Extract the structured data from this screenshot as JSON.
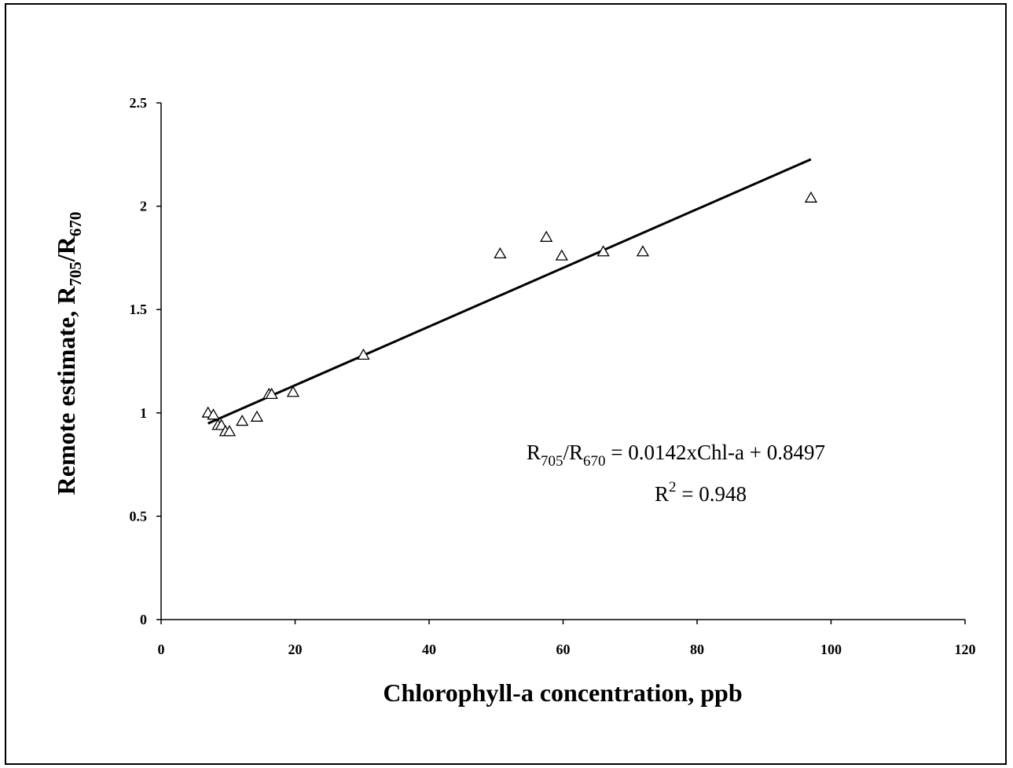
{
  "chart_data": {
    "type": "scatter",
    "xlabel": "Chlorophyll-a concentration, ppb",
    "ylabel": {
      "base": "Remote estimate, R",
      "sub1": "705",
      "mid": "/R",
      "sub2": "670"
    },
    "xlim": [
      0,
      120
    ],
    "ylim": [
      0,
      2.5
    ],
    "x_ticks": [
      "0",
      "20",
      "40",
      "60",
      "80",
      "100",
      "120"
    ],
    "y_ticks": [
      "0",
      "0.5",
      "1",
      "1.5",
      "2",
      "2.5"
    ],
    "grid": false,
    "legend": "none",
    "series": [
      {
        "marker": "open-triangle",
        "points": [
          {
            "x": 7.0,
            "y": 1.0
          },
          {
            "x": 7.8,
            "y": 0.99
          },
          {
            "x": 8.5,
            "y": 0.94
          },
          {
            "x": 9.0,
            "y": 0.94
          },
          {
            "x": 9.6,
            "y": 0.91
          },
          {
            "x": 10.2,
            "y": 0.91
          },
          {
            "x": 12.1,
            "y": 0.96
          },
          {
            "x": 14.3,
            "y": 0.98
          },
          {
            "x": 16.1,
            "y": 1.09
          },
          {
            "x": 16.5,
            "y": 1.09
          },
          {
            "x": 19.7,
            "y": 1.1
          },
          {
            "x": 30.2,
            "y": 1.28
          },
          {
            "x": 50.6,
            "y": 1.77
          },
          {
            "x": 57.5,
            "y": 1.85
          },
          {
            "x": 59.8,
            "y": 1.76
          },
          {
            "x": 66.0,
            "y": 1.78
          },
          {
            "x": 71.9,
            "y": 1.78
          },
          {
            "x": 97.0,
            "y": 2.04
          }
        ]
      }
    ],
    "trendline": {
      "slope": 0.0142,
      "intercept": 0.8497,
      "x_range": [
        7.0,
        97.0
      ]
    },
    "annotation": {
      "eq_R1": "R",
      "eq_sub1": "705",
      "eq_mid": "/R",
      "eq_sub2": "670",
      "eq_rest": " = 0.0142xChl-a + 0.8497",
      "r2_base": "R",
      "r2_sup": "2",
      "r2_rest": " = 0.948"
    }
  }
}
